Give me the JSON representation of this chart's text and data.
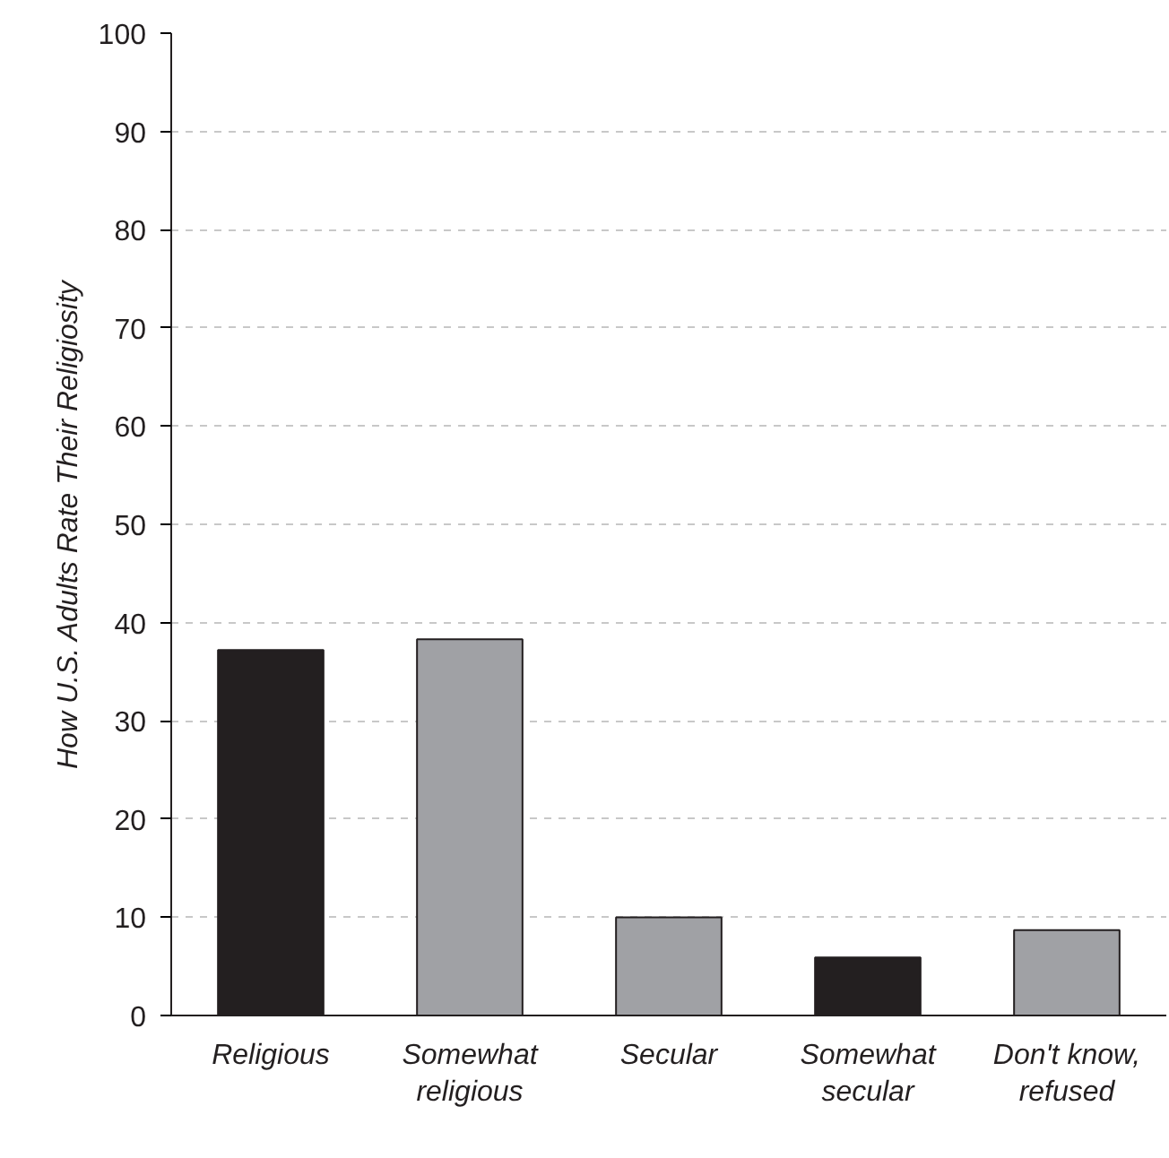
{
  "chart_data": {
    "type": "bar",
    "ylabel": "How U.S. Adults Rate Their Religiosity",
    "categories": [
      "Religious",
      "Somewhat religious",
      "Secular",
      "Somewhat secular",
      "Don't know, refused"
    ],
    "values": [
      37.2,
      38.3,
      10,
      5.9,
      8.7
    ],
    "colors": [
      "#231f20",
      "#a0a1a5",
      "#a0a1a5",
      "#231f20",
      "#a0a1a5"
    ],
    "ylim": [
      0,
      100
    ],
    "yticks": [
      0,
      10,
      20,
      30,
      40,
      50,
      60,
      70,
      80,
      90,
      100
    ],
    "grid": "y"
  }
}
